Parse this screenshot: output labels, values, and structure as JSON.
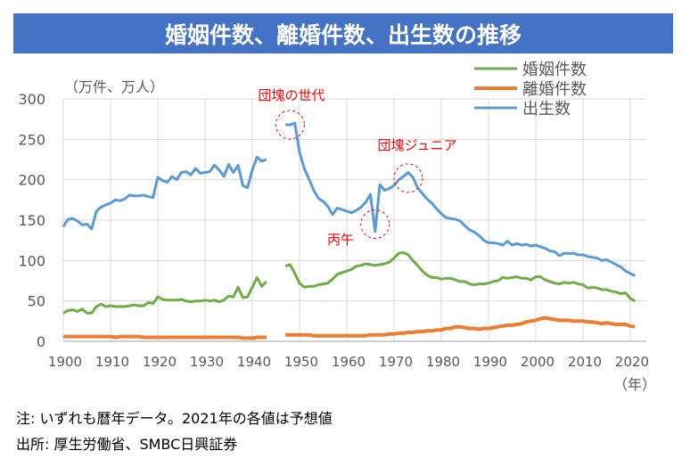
{
  "title": "婚姻件数、離婚件数、出生数の推移",
  "notes": [
    "注: いずれも暦年データ。2021年の各値は予想値",
    "出所: 厚生労働省、SMBC日興証券"
  ],
  "colors": {
    "marriage": "#70AD47",
    "divorce": "#ED7D31",
    "births": "#5B9BD5",
    "annotation": "#FF0000",
    "grid": "#D9D9D9"
  },
  "chart_data": {
    "type": "line",
    "title": "婚姻件数、離婚件数、出生数の推移",
    "ylabel": "（万件、万人）",
    "xlabel": "（年）",
    "ylim": [
      0,
      300
    ],
    "xlim": [
      1900,
      2023
    ],
    "yticks": [
      0,
      50,
      100,
      150,
      200,
      250,
      300
    ],
    "xticks": [
      1900,
      1910,
      1920,
      1930,
      1940,
      1950,
      1960,
      1970,
      1980,
      1990,
      2000,
      2010,
      2020
    ],
    "legend": "top-right",
    "grid": true,
    "annotations": [
      {
        "text": "団塊の世代",
        "x": 1948,
        "y": 268
      },
      {
        "text": "丙午",
        "x": 1966,
        "y": 145
      },
      {
        "text": "団塊ジュニア",
        "x": 1973,
        "y": 202
      }
    ],
    "x_start": 1900,
    "series": [
      {
        "name": "婚姻件数",
        "key": "marriage",
        "values": [
          35,
          38,
          39,
          37,
          40,
          35,
          35,
          43,
          46,
          43,
          44,
          43,
          43,
          43,
          44,
          45,
          44,
          44,
          48,
          47,
          55,
          52,
          51,
          51,
          51,
          52,
          50,
          49,
          50,
          50,
          51,
          50,
          51,
          49,
          51,
          56,
          55,
          67,
          54,
          55,
          67,
          79,
          68,
          74,
          null,
          null,
          null,
          93,
          95,
          84,
          72,
          67,
          68,
          68,
          70,
          71,
          72,
          77,
          83,
          85,
          87,
          89,
          93,
          94,
          96,
          95,
          94,
          95,
          96,
          98,
          103,
          109,
          110,
          107,
          100,
          94,
          87,
          82,
          79,
          79,
          77,
          78,
          78,
          76,
          74,
          74,
          71,
          70,
          71,
          71,
          72,
          74,
          75,
          79,
          78,
          79,
          80,
          78,
          78,
          76,
          80,
          80,
          76,
          74,
          72,
          71,
          73,
          72,
          73,
          71,
          70,
          66,
          67,
          66,
          64,
          64,
          62,
          61,
          59,
          60,
          53,
          50
        ]
      },
      {
        "name": "離婚件数",
        "key": "divorce",
        "values": [
          6,
          6,
          6,
          6,
          6,
          6,
          6,
          6,
          6,
          6,
          6,
          5,
          6,
          6,
          6,
          6,
          6,
          5,
          5,
          5,
          5,
          5,
          5,
          5,
          5,
          5,
          5,
          5,
          5,
          5,
          5,
          5,
          5,
          5,
          5,
          5,
          5,
          5,
          4,
          4,
          4,
          5,
          5,
          5,
          null,
          null,
          null,
          8,
          8,
          8,
          8,
          8,
          8,
          7,
          7,
          7,
          7,
          7,
          7,
          7,
          7,
          7,
          7,
          7,
          7,
          8,
          8,
          8,
          8,
          9,
          9,
          10,
          10,
          11,
          11,
          12,
          12,
          13,
          13,
          14,
          14,
          16,
          16,
          18,
          18,
          17,
          16,
          16,
          15,
          16,
          16,
          17,
          18,
          19,
          20,
          20,
          21,
          22,
          24,
          25,
          26,
          28,
          29,
          28,
          27,
          26,
          26,
          26,
          25,
          25,
          25,
          24,
          24,
          23,
          22,
          23,
          22,
          21,
          21,
          21,
          19,
          18
        ]
      },
      {
        "name": "出生数",
        "key": "births",
        "values": [
          142,
          151,
          152,
          149,
          144,
          145,
          139,
          161,
          166,
          169,
          171,
          175,
          174,
          176,
          181,
          180,
          180,
          181,
          179,
          178,
          203,
          199,
          197,
          204,
          200,
          209,
          210,
          206,
          214,
          208,
          209,
          210,
          218,
          212,
          204,
          219,
          209,
          218,
          193,
          190,
          212,
          228,
          223,
          225,
          null,
          null,
          null,
          268,
          268,
          270,
          234,
          214,
          201,
          187,
          177,
          173,
          167,
          157,
          165,
          163,
          161,
          159,
          162,
          166,
          172,
          182,
          136,
          194,
          187,
          189,
          193,
          200,
          204,
          209,
          203,
          190,
          183,
          176,
          171,
          164,
          158,
          153,
          152,
          151,
          149,
          143,
          138,
          135,
          131,
          125,
          122,
          122,
          121,
          119,
          124,
          119,
          121,
          119,
          120,
          118,
          119,
          117,
          115,
          112,
          111,
          106,
          109,
          109,
          109,
          107,
          107,
          105,
          104,
          103,
          100,
          101,
          98,
          95,
          92,
          87,
          84,
          81
        ]
      }
    ]
  }
}
